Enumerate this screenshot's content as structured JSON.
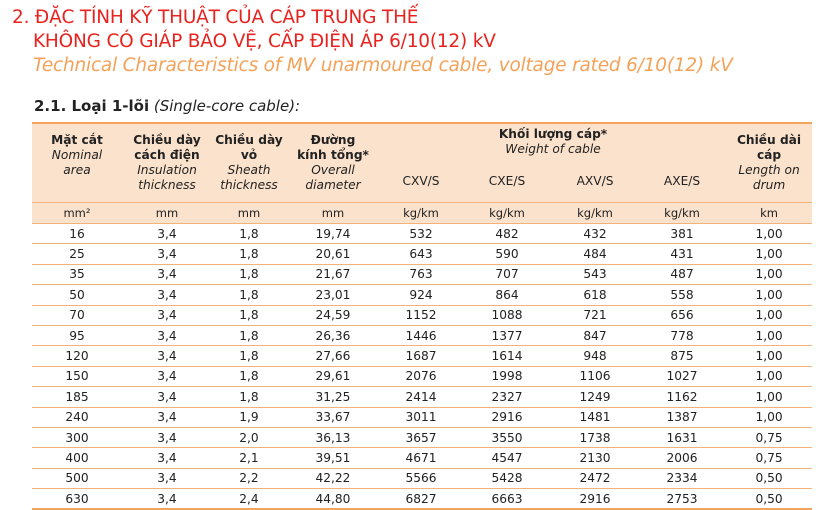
{
  "heading": {
    "line1": "2. ĐẶC TÍNH KỸ THUẬT CỦA CÁP TRUNG THẾ",
    "line2": "KHÔNG CÓ GIÁP BẢO VỆ, CẤP ĐIỆN ÁP 6/10(12) kV",
    "line3": "Technical Characteristics of MV unarmoured cable, voltage rated 6/10(12) kV"
  },
  "section": {
    "label": "2.1. Loại 1-lõi",
    "label_en": "(Single-core cable):"
  },
  "header": {
    "area_vi": "Mặt cắt",
    "area_en1": "Nominal",
    "area_en2": "area",
    "ins_vi1": "Chiều dày",
    "ins_vi2": "cách điện",
    "ins_en1": "Insulation",
    "ins_en2": "thickness",
    "sheath_vi1": "Chiều dày",
    "sheath_vi2": "vỏ",
    "sheath_en1": "Sheath",
    "sheath_en2": "thickness",
    "dia_vi1": "Đường",
    "dia_vi2": "kính tổng*",
    "dia_en1": "Overall",
    "dia_en2": "diameter",
    "weight_vi": "Khối lượng cáp*",
    "weight_en": "Weight of cable",
    "cxv": "CXV/S",
    "cxe": "CXE/S",
    "axv": "AXV/S",
    "axe": "AXE/S",
    "len_vi1": "Chiều dài",
    "len_vi2": "cáp",
    "len_en1": "Length on",
    "len_en2": "drum"
  },
  "units": [
    "mm²",
    "mm",
    "mm",
    "mm",
    "kg/km",
    "kg/km",
    "kg/km",
    "kg/km",
    "km"
  ],
  "rows": [
    [
      "16",
      "3,4",
      "1,8",
      "19,74",
      "532",
      "482",
      "432",
      "381",
      "1,00"
    ],
    [
      "25",
      "3,4",
      "1,8",
      "20,61",
      "643",
      "590",
      "484",
      "431",
      "1,00"
    ],
    [
      "35",
      "3,4",
      "1,8",
      "21,67",
      "763",
      "707",
      "543",
      "487",
      "1,00"
    ],
    [
      "50",
      "3,4",
      "1,8",
      "23,01",
      "924",
      "864",
      "618",
      "558",
      "1,00"
    ],
    [
      "70",
      "3,4",
      "1,8",
      "24,59",
      "1152",
      "1088",
      "721",
      "656",
      "1,00"
    ],
    [
      "95",
      "3,4",
      "1,8",
      "26,36",
      "1446",
      "1377",
      "847",
      "778",
      "1,00"
    ],
    [
      "120",
      "3,4",
      "1,8",
      "27,66",
      "1687",
      "1614",
      "948",
      "875",
      "1,00"
    ],
    [
      "150",
      "3,4",
      "1,8",
      "29,61",
      "2076",
      "1998",
      "1106",
      "1027",
      "1,00"
    ],
    [
      "185",
      "3,4",
      "1,8",
      "31,25",
      "2414",
      "2327",
      "1249",
      "1162",
      "1,00"
    ],
    [
      "240",
      "3,4",
      "1,9",
      "33,67",
      "3011",
      "2916",
      "1481",
      "1387",
      "1,00"
    ],
    [
      "300",
      "3,4",
      "2,0",
      "36,13",
      "3657",
      "3550",
      "1738",
      "1631",
      "0,75"
    ],
    [
      "400",
      "3,4",
      "2,1",
      "39,51",
      "4671",
      "4547",
      "2130",
      "2006",
      "0,75"
    ],
    [
      "500",
      "3,4",
      "2,2",
      "42,22",
      "5566",
      "5428",
      "2472",
      "2334",
      "0,50"
    ],
    [
      "630",
      "3,4",
      "2,4",
      "44,80",
      "6827",
      "6663",
      "2916",
      "2753",
      "0,50"
    ]
  ]
}
